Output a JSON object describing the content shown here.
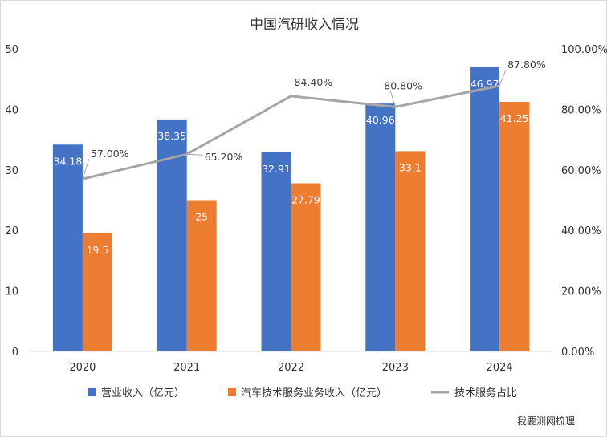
{
  "chart_data": {
    "type": "bar+line",
    "title": "中国汽研收入情况",
    "categories": [
      "2020",
      "2021",
      "2022",
      "2023",
      "2024"
    ],
    "series": [
      {
        "name": "营业收入（亿元）",
        "type": "bar",
        "axis": "left",
        "color": "#4472C4",
        "values": [
          34.18,
          38.35,
          32.91,
          40.96,
          46.97
        ],
        "labels": [
          "34.18",
          "38.35",
          "32.91",
          "40.96",
          "46.97"
        ]
      },
      {
        "name": "汽车技术服务业务收入（亿元）",
        "type": "bar",
        "axis": "left",
        "color": "#ED7D31",
        "values": [
          19.5,
          25,
          27.79,
          33.1,
          41.25
        ],
        "labels": [
          "19.5",
          "25",
          "27.79",
          "33.1",
          "41.25"
        ]
      },
      {
        "name": "技术服务占比",
        "type": "line",
        "axis": "right",
        "color": "#A5A5A5",
        "values": [
          57.0,
          65.2,
          84.4,
          80.8,
          87.8
        ],
        "labels": [
          "57.00%",
          "65.20%",
          "84.40%",
          "80.80%",
          "87.80%"
        ]
      }
    ],
    "y_left": {
      "min": 0,
      "max": 50,
      "ticks": [
        "0",
        "10",
        "20",
        "30",
        "40",
        "50"
      ]
    },
    "y_right": {
      "min": 0,
      "max": 100,
      "ticks": [
        "0.00%",
        "20.00%",
        "40.00%",
        "60.00%",
        "80.00%",
        "100.00%"
      ]
    },
    "grid": false,
    "legend": "bottom"
  },
  "credit": "我要测网梳理"
}
